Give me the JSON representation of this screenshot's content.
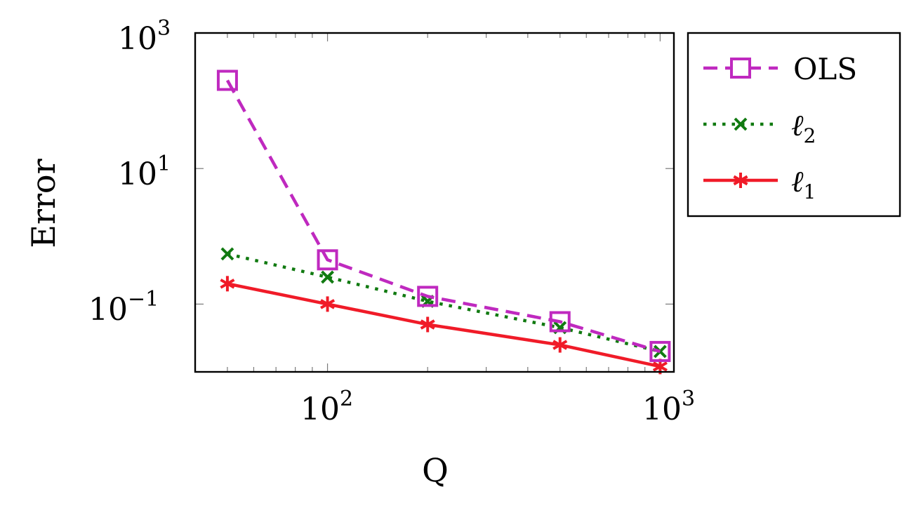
{
  "chart_data": {
    "type": "line",
    "title": "",
    "xlabel": "Q",
    "ylabel": "Error",
    "xscale": "log",
    "yscale": "log",
    "xlim": [
      40,
      1100
    ],
    "ylim": [
      0.01,
      1000
    ],
    "x_ticks": [
      {
        "base": "10",
        "exp": "2"
      },
      {
        "base": "10",
        "exp": "3"
      }
    ],
    "y_ticks": [
      {
        "base": "10",
        "exp": "3"
      },
      {
        "base": "10",
        "exp": "1"
      },
      {
        "base": "10",
        "exp": "−1"
      }
    ],
    "legend_position": "outside-right-top",
    "series": [
      {
        "name": "OLS",
        "label_main": "OLS",
        "label_sub": "",
        "color": "#bf29bf",
        "dash": "dashed",
        "marker": "square",
        "x": [
          50,
          100,
          200,
          500,
          1000
        ],
        "y": [
          200,
          0.45,
          0.13,
          0.055,
          0.02
        ]
      },
      {
        "name": "ℓ2",
        "label_main": "ℓ",
        "label_sub": "2",
        "color": "#117a11",
        "dash": "dotted",
        "marker": "x",
        "x": [
          50,
          100,
          200,
          500,
          1000
        ],
        "y": [
          0.55,
          0.25,
          0.11,
          0.045,
          0.02
        ]
      },
      {
        "name": "ℓ1",
        "label_main": "ℓ",
        "label_sub": "1",
        "color": "#f01b28",
        "dash": "solid",
        "marker": "asterisk",
        "x": [
          50,
          100,
          200,
          500,
          1000
        ],
        "y": [
          0.2,
          0.1,
          0.05,
          0.025,
          0.012
        ]
      }
    ]
  }
}
